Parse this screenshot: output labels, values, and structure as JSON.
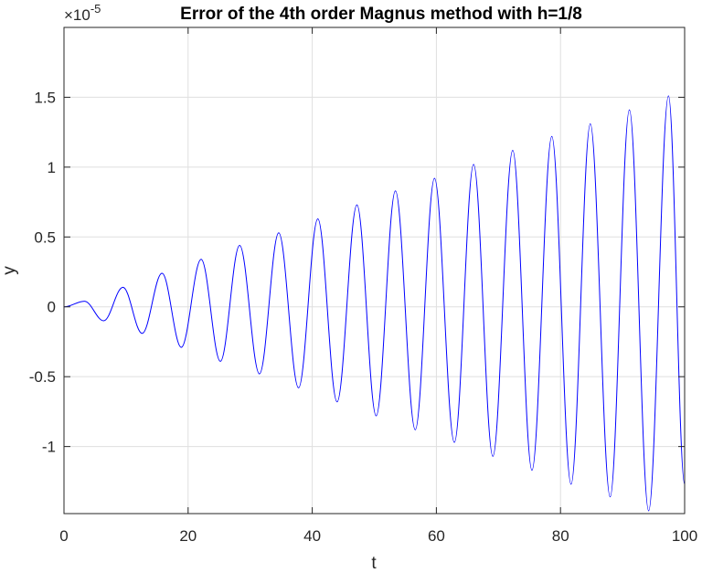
{
  "chart_data": {
    "type": "line",
    "title": "Error of the 4th order Magnus method with h=1/8",
    "xlabel": "t",
    "ylabel": "y",
    "xlim": [
      0,
      100
    ],
    "ylim": [
      -1.48e-05,
      2e-05
    ],
    "x_ticks": [
      0,
      20,
      40,
      60,
      80,
      100
    ],
    "x_tick_labels": [
      "0",
      "20",
      "40",
      "60",
      "80",
      "100"
    ],
    "y_ticks": [
      -1e-05,
      -5e-06,
      0,
      5e-06,
      1e-05,
      1.5e-05
    ],
    "y_tick_labels": [
      "-1",
      "-0.5",
      "0",
      "0.5",
      "1",
      "1.5"
    ],
    "y_exponent_label": {
      "prefix": "×10",
      "power": "-5"
    },
    "grid": true,
    "series": [
      {
        "color": "#0000ff",
        "x": [
          0,
          3.3,
          6.4,
          9.5,
          12.6,
          15.8,
          18.9,
          22.1,
          25.2,
          28.3,
          31.5,
          34.6,
          37.8,
          40.9,
          44.0,
          47.2,
          50.3,
          53.4,
          56.6,
          59.7,
          62.9,
          66.0,
          69.1,
          72.3,
          75.4,
          78.6,
          81.7,
          84.8,
          88.0,
          91.1,
          94.2,
          97.4,
          100
        ],
        "y": [
          0,
          4e-07,
          -1e-06,
          1.4e-06,
          -1.9e-06,
          2.4e-06,
          -2.9e-06,
          3.4e-06,
          -3.9e-06,
          4.4e-06,
          -4.8e-06,
          5.3e-06,
          -5.8e-06,
          6.3e-06,
          -6.8e-06,
          7.3e-06,
          -7.8e-06,
          8.3e-06,
          -8.8e-06,
          9.2e-06,
          -9.7e-06,
          1.02e-05,
          -1.07e-05,
          1.12e-05,
          -1.17e-05,
          1.22e-05,
          -1.27e-05,
          1.31e-05,
          -1.36e-05,
          1.41e-05,
          -1.46e-05,
          1.51e-05,
          -1.27e-05
        ]
      }
    ]
  }
}
